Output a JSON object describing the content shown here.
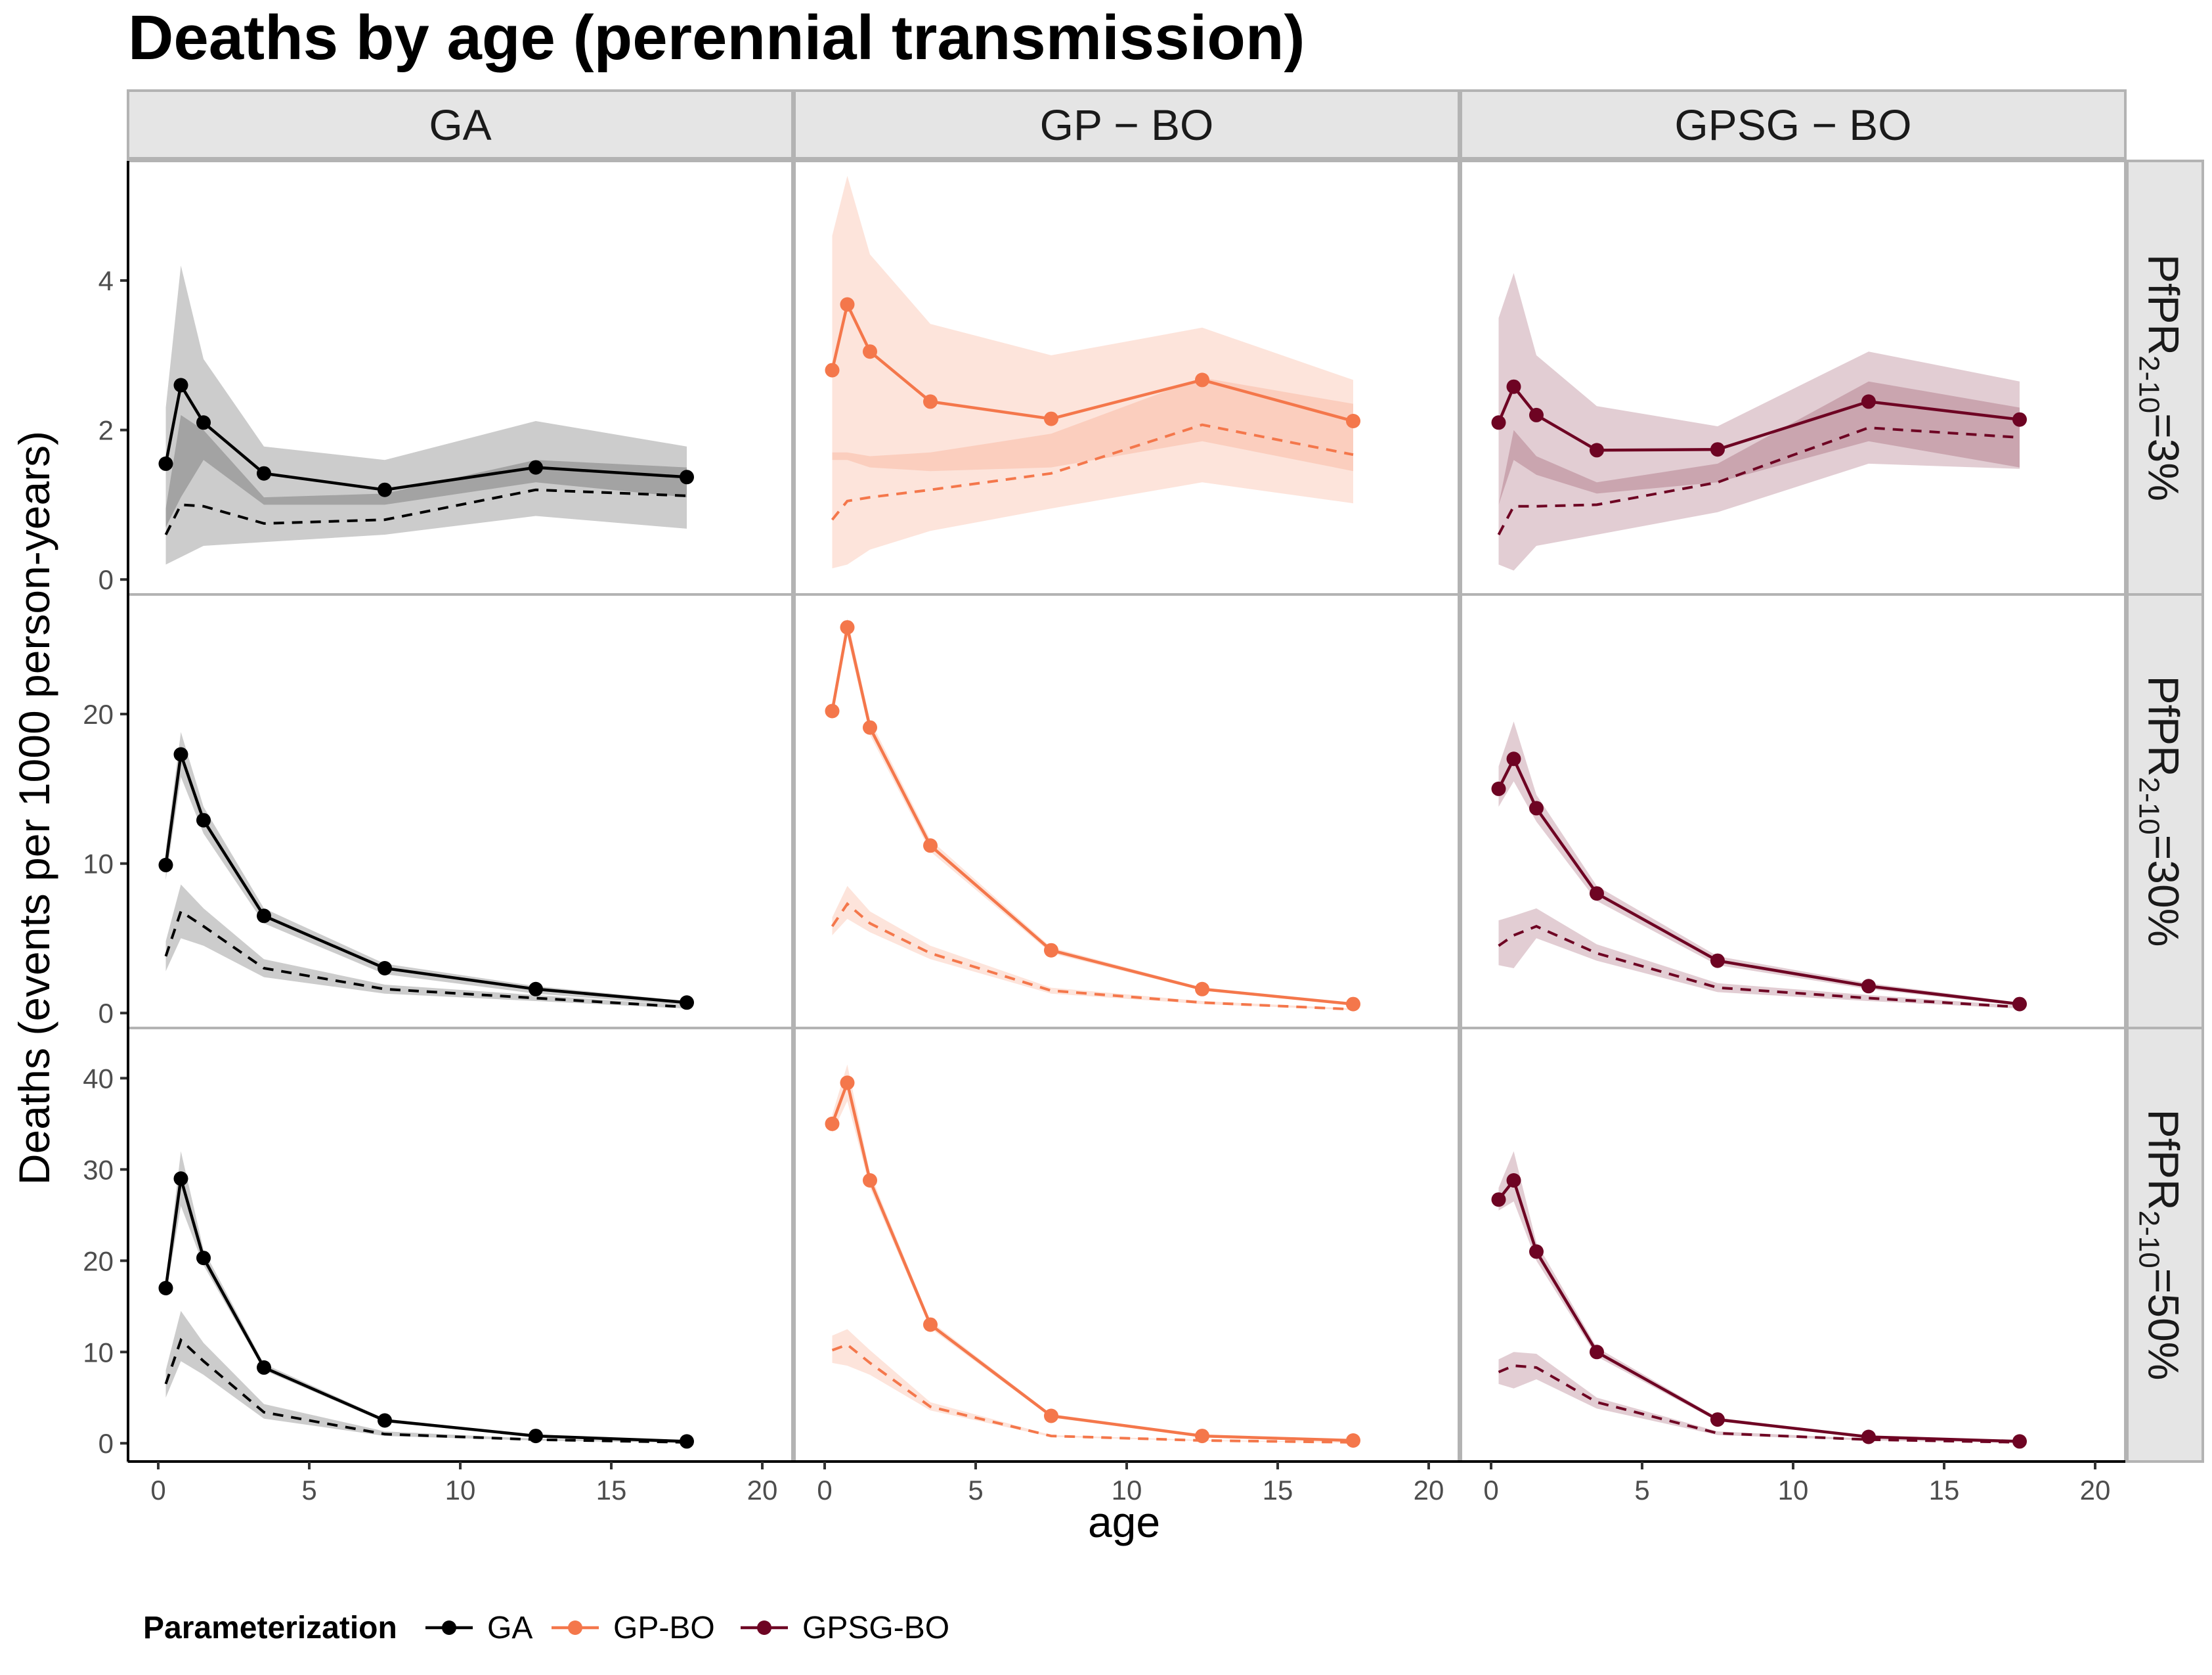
{
  "title": "Deaths by age (perennial transmission)",
  "chart_data": {
    "type": "line",
    "title": "Deaths by age (perennial transmission)",
    "xlabel": "age",
    "ylabel": "Deaths (events per 1000 person-years)",
    "xlim": [
      -1,
      21
    ],
    "xticks": [
      0,
      5,
      10,
      15,
      20
    ],
    "grid": false,
    "legend_position": "bottom-left",
    "legend_title": "Parameterization",
    "columns": [
      {
        "key": "GA",
        "strip": "GA",
        "legend": "GA",
        "color": "#000000"
      },
      {
        "key": "GPBO",
        "strip": "GP − BO",
        "legend": "GP-BO",
        "color": "#F4774B"
      },
      {
        "key": "GPSGBO",
        "strip": "GPSG − BO",
        "legend": "GPSG-BO",
        "color": "#6E0423"
      }
    ],
    "rows": [
      {
        "label_prefix": "PfPR",
        "label_sub": "2-10",
        "label_suffix": "=3%",
        "ylim": [
          -0.2,
          5.6
        ],
        "yticks": [
          0,
          2,
          4
        ]
      },
      {
        "label_prefix": "PfPR",
        "label_sub": "2-10",
        "label_suffix": "=30%",
        "ylim": [
          -1.0,
          28.0
        ],
        "yticks": [
          0,
          10,
          20
        ]
      },
      {
        "label_prefix": "PfPR",
        "label_sub": "2-10",
        "label_suffix": "=50%",
        "ylim": [
          -2.0,
          45.5
        ],
        "yticks": [
          0,
          10,
          20,
          30,
          40
        ]
      }
    ],
    "age": [
      0.25,
      0.75,
      1.5,
      3.5,
      7.5,
      12.5,
      17.5
    ],
    "line_styles": {
      "solid": "with points",
      "dashed": "without points"
    },
    "panels": [
      {
        "row": 0,
        "col": "GA",
        "solid": [
          1.55,
          2.6,
          2.1,
          1.42,
          1.2,
          1.5,
          1.37
        ],
        "solid_lo": [
          0.7,
          1.1,
          1.6,
          1.0,
          1.0,
          1.3,
          1.1
        ],
        "solid_hi": [
          2.3,
          4.2,
          2.95,
          1.78,
          1.6,
          2.12,
          1.78
        ],
        "dashed": [
          0.6,
          1.0,
          0.98,
          0.75,
          0.8,
          1.2,
          1.12
        ],
        "dashed_lo": [
          0.2,
          0.3,
          0.45,
          0.5,
          0.6,
          0.85,
          0.68
        ],
        "dashed_hi": [
          0.95,
          2.2,
          2.0,
          1.1,
          1.15,
          1.6,
          1.5
        ]
      },
      {
        "row": 0,
        "col": "GPBO",
        "solid": [
          2.8,
          3.68,
          3.05,
          2.38,
          2.15,
          2.67,
          2.12
        ],
        "solid_lo": [
          1.6,
          1.6,
          1.5,
          1.45,
          1.5,
          1.85,
          1.45
        ],
        "solid_hi": [
          4.6,
          5.4,
          4.35,
          3.42,
          3.0,
          3.37,
          2.67
        ],
        "dashed": [
          0.8,
          1.05,
          1.1,
          1.2,
          1.42,
          2.07,
          1.67
        ],
        "dashed_lo": [
          0.15,
          0.2,
          0.4,
          0.65,
          0.95,
          1.3,
          1.02
        ],
        "dashed_hi": [
          1.7,
          1.7,
          1.65,
          1.7,
          1.95,
          2.7,
          2.35
        ]
      },
      {
        "row": 0,
        "col": "GPSGBO",
        "solid": [
          2.1,
          2.58,
          2.2,
          1.73,
          1.74,
          2.38,
          2.14
        ],
        "solid_lo": [
          1.0,
          1.6,
          1.4,
          1.15,
          1.3,
          1.85,
          1.5
        ],
        "solid_hi": [
          3.5,
          4.1,
          3.0,
          2.32,
          2.05,
          3.05,
          2.65
        ],
        "dashed": [
          0.6,
          0.98,
          0.98,
          1.0,
          1.3,
          2.03,
          1.9
        ],
        "dashed_lo": [
          0.2,
          0.12,
          0.45,
          0.6,
          0.9,
          1.55,
          1.48
        ],
        "dashed_hi": [
          1.0,
          2.0,
          1.65,
          1.3,
          1.55,
          2.65,
          2.3
        ]
      },
      {
        "row": 1,
        "col": "GA",
        "solid": [
          9.9,
          17.3,
          12.9,
          6.5,
          3.0,
          1.6,
          0.7
        ],
        "solid_lo": [
          8.9,
          15.8,
          12.0,
          6.0,
          2.6,
          1.3,
          0.5
        ],
        "solid_hi": [
          10.9,
          18.8,
          13.8,
          7.0,
          3.3,
          1.8,
          0.8
        ],
        "dashed": [
          3.8,
          6.8,
          5.8,
          3.0,
          1.6,
          1.0,
          0.4
        ],
        "dashed_lo": [
          2.8,
          5.0,
          4.5,
          2.4,
          1.3,
          0.8,
          0.3
        ],
        "dashed_hi": [
          4.8,
          8.6,
          7.0,
          3.6,
          1.9,
          1.2,
          0.5
        ]
      },
      {
        "row": 1,
        "col": "GPBO",
        "solid": [
          20.2,
          25.8,
          19.1,
          11.2,
          4.2,
          1.6,
          0.6
        ],
        "solid_lo": [
          19.7,
          25.2,
          18.6,
          10.8,
          4.0,
          1.5,
          0.5
        ],
        "solid_hi": [
          20.7,
          26.4,
          19.6,
          11.6,
          4.4,
          1.7,
          0.7
        ],
        "dashed": [
          5.8,
          7.3,
          6.0,
          4.0,
          1.5,
          0.7,
          0.25
        ],
        "dashed_lo": [
          5.2,
          6.3,
          5.4,
          3.6,
          1.3,
          0.6,
          0.2
        ],
        "dashed_hi": [
          6.4,
          8.5,
          6.8,
          4.5,
          1.7,
          0.8,
          0.3
        ]
      },
      {
        "row": 1,
        "col": "GPSGBO",
        "solid": [
          15.0,
          17.0,
          13.7,
          8.0,
          3.5,
          1.8,
          0.6
        ],
        "solid_lo": [
          13.8,
          15.5,
          12.8,
          7.5,
          3.2,
          1.6,
          0.5
        ],
        "solid_hi": [
          16.5,
          19.5,
          14.6,
          8.5,
          3.8,
          2.0,
          0.7
        ],
        "dashed": [
          4.5,
          5.2,
          5.8,
          4.0,
          1.7,
          1.0,
          0.4
        ],
        "dashed_lo": [
          3.2,
          3.0,
          5.0,
          3.5,
          1.4,
          0.8,
          0.3
        ],
        "dashed_hi": [
          6.2,
          6.5,
          7.0,
          4.6,
          2.0,
          1.2,
          0.5
        ]
      },
      {
        "row": 2,
        "col": "GA",
        "solid": [
          17.0,
          29.0,
          20.3,
          8.3,
          2.5,
          0.8,
          0.2
        ],
        "solid_lo": [
          16.2,
          26.0,
          19.5,
          8.0,
          2.3,
          0.7,
          0.15
        ],
        "solid_hi": [
          17.8,
          32.0,
          21.2,
          8.7,
          2.7,
          0.9,
          0.25
        ],
        "dashed": [
          6.5,
          11.3,
          9.0,
          3.4,
          1.0,
          0.4,
          0.1
        ],
        "dashed_lo": [
          5.0,
          9.0,
          7.5,
          2.7,
          0.8,
          0.3,
          0.05
        ],
        "dashed_hi": [
          8.0,
          14.5,
          11.0,
          4.3,
          1.3,
          0.5,
          0.15
        ]
      },
      {
        "row": 2,
        "col": "GPBO",
        "solid": [
          35.0,
          39.5,
          28.8,
          13.0,
          3.0,
          0.8,
          0.3
        ],
        "solid_lo": [
          34.0,
          37.5,
          28.0,
          12.6,
          2.8,
          0.7,
          0.25
        ],
        "solid_hi": [
          36.0,
          41.5,
          29.6,
          13.4,
          3.2,
          0.9,
          0.35
        ],
        "dashed": [
          10.2,
          10.8,
          8.8,
          4.0,
          0.8,
          0.3,
          0.1
        ],
        "dashed_lo": [
          8.8,
          8.5,
          7.5,
          3.6,
          0.7,
          0.25,
          0.05
        ],
        "dashed_hi": [
          11.8,
          12.5,
          10.2,
          4.5,
          0.9,
          0.35,
          0.15
        ]
      },
      {
        "row": 2,
        "col": "GPSGBO",
        "solid": [
          26.7,
          28.8,
          21.0,
          10.0,
          2.6,
          0.7,
          0.2
        ],
        "solid_lo": [
          25.5,
          26.5,
          20.0,
          9.5,
          2.4,
          0.6,
          0.15
        ],
        "solid_hi": [
          28.0,
          32.0,
          22.0,
          10.5,
          2.8,
          0.8,
          0.25
        ],
        "dashed": [
          7.8,
          8.5,
          8.3,
          4.5,
          1.1,
          0.4,
          0.1
        ],
        "dashed_lo": [
          6.5,
          6.0,
          7.0,
          3.8,
          0.9,
          0.3,
          0.05
        ],
        "dashed_hi": [
          9.2,
          10.0,
          9.8,
          5.0,
          1.3,
          0.5,
          0.15
        ]
      }
    ]
  }
}
